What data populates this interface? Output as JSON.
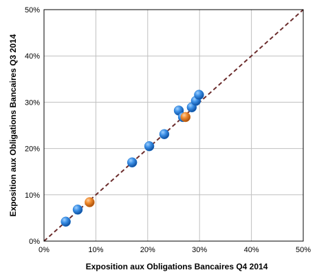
{
  "chart_data": {
    "type": "scatter",
    "title": "",
    "xlabel": "Exposition aux Obligations Bancaires Q4 2014",
    "ylabel": "Exposition aux Obligations Bancaires Q3 2014",
    "xlim": [
      0,
      50
    ],
    "ylim": [
      0,
      50
    ],
    "x_ticks": [
      "0%",
      "10%",
      "20%",
      "30%",
      "40%",
      "50%"
    ],
    "y_ticks": [
      "0%",
      "10%",
      "20%",
      "30%",
      "40%",
      "50%"
    ],
    "tick_values": [
      0,
      10,
      20,
      30,
      40,
      50
    ],
    "grid": true,
    "legend": "none",
    "reference_line": {
      "type": "diagonal",
      "from": [
        0,
        0
      ],
      "to": [
        50,
        50
      ],
      "style": "dashed",
      "color": "#6b2c2c"
    },
    "series": [
      {
        "color": "#1f77d0",
        "points": [
          {
            "x": 4.2,
            "y": 4.2
          },
          {
            "x": 6.5,
            "y": 6.8
          },
          {
            "x": 17.0,
            "y": 17.0
          },
          {
            "x": 20.3,
            "y": 20.5
          },
          {
            "x": 23.2,
            "y": 23.1
          },
          {
            "x": 26.0,
            "y": 28.2
          },
          {
            "x": 26.8,
            "y": 26.8
          },
          {
            "x": 28.5,
            "y": 28.9
          },
          {
            "x": 29.3,
            "y": 30.3
          },
          {
            "x": 29.9,
            "y": 31.6
          }
        ]
      },
      {
        "color": "#e07a1f",
        "points": [
          {
            "x": 8.8,
            "y": 8.4
          },
          {
            "x": 27.3,
            "y": 26.8
          }
        ]
      }
    ]
  }
}
